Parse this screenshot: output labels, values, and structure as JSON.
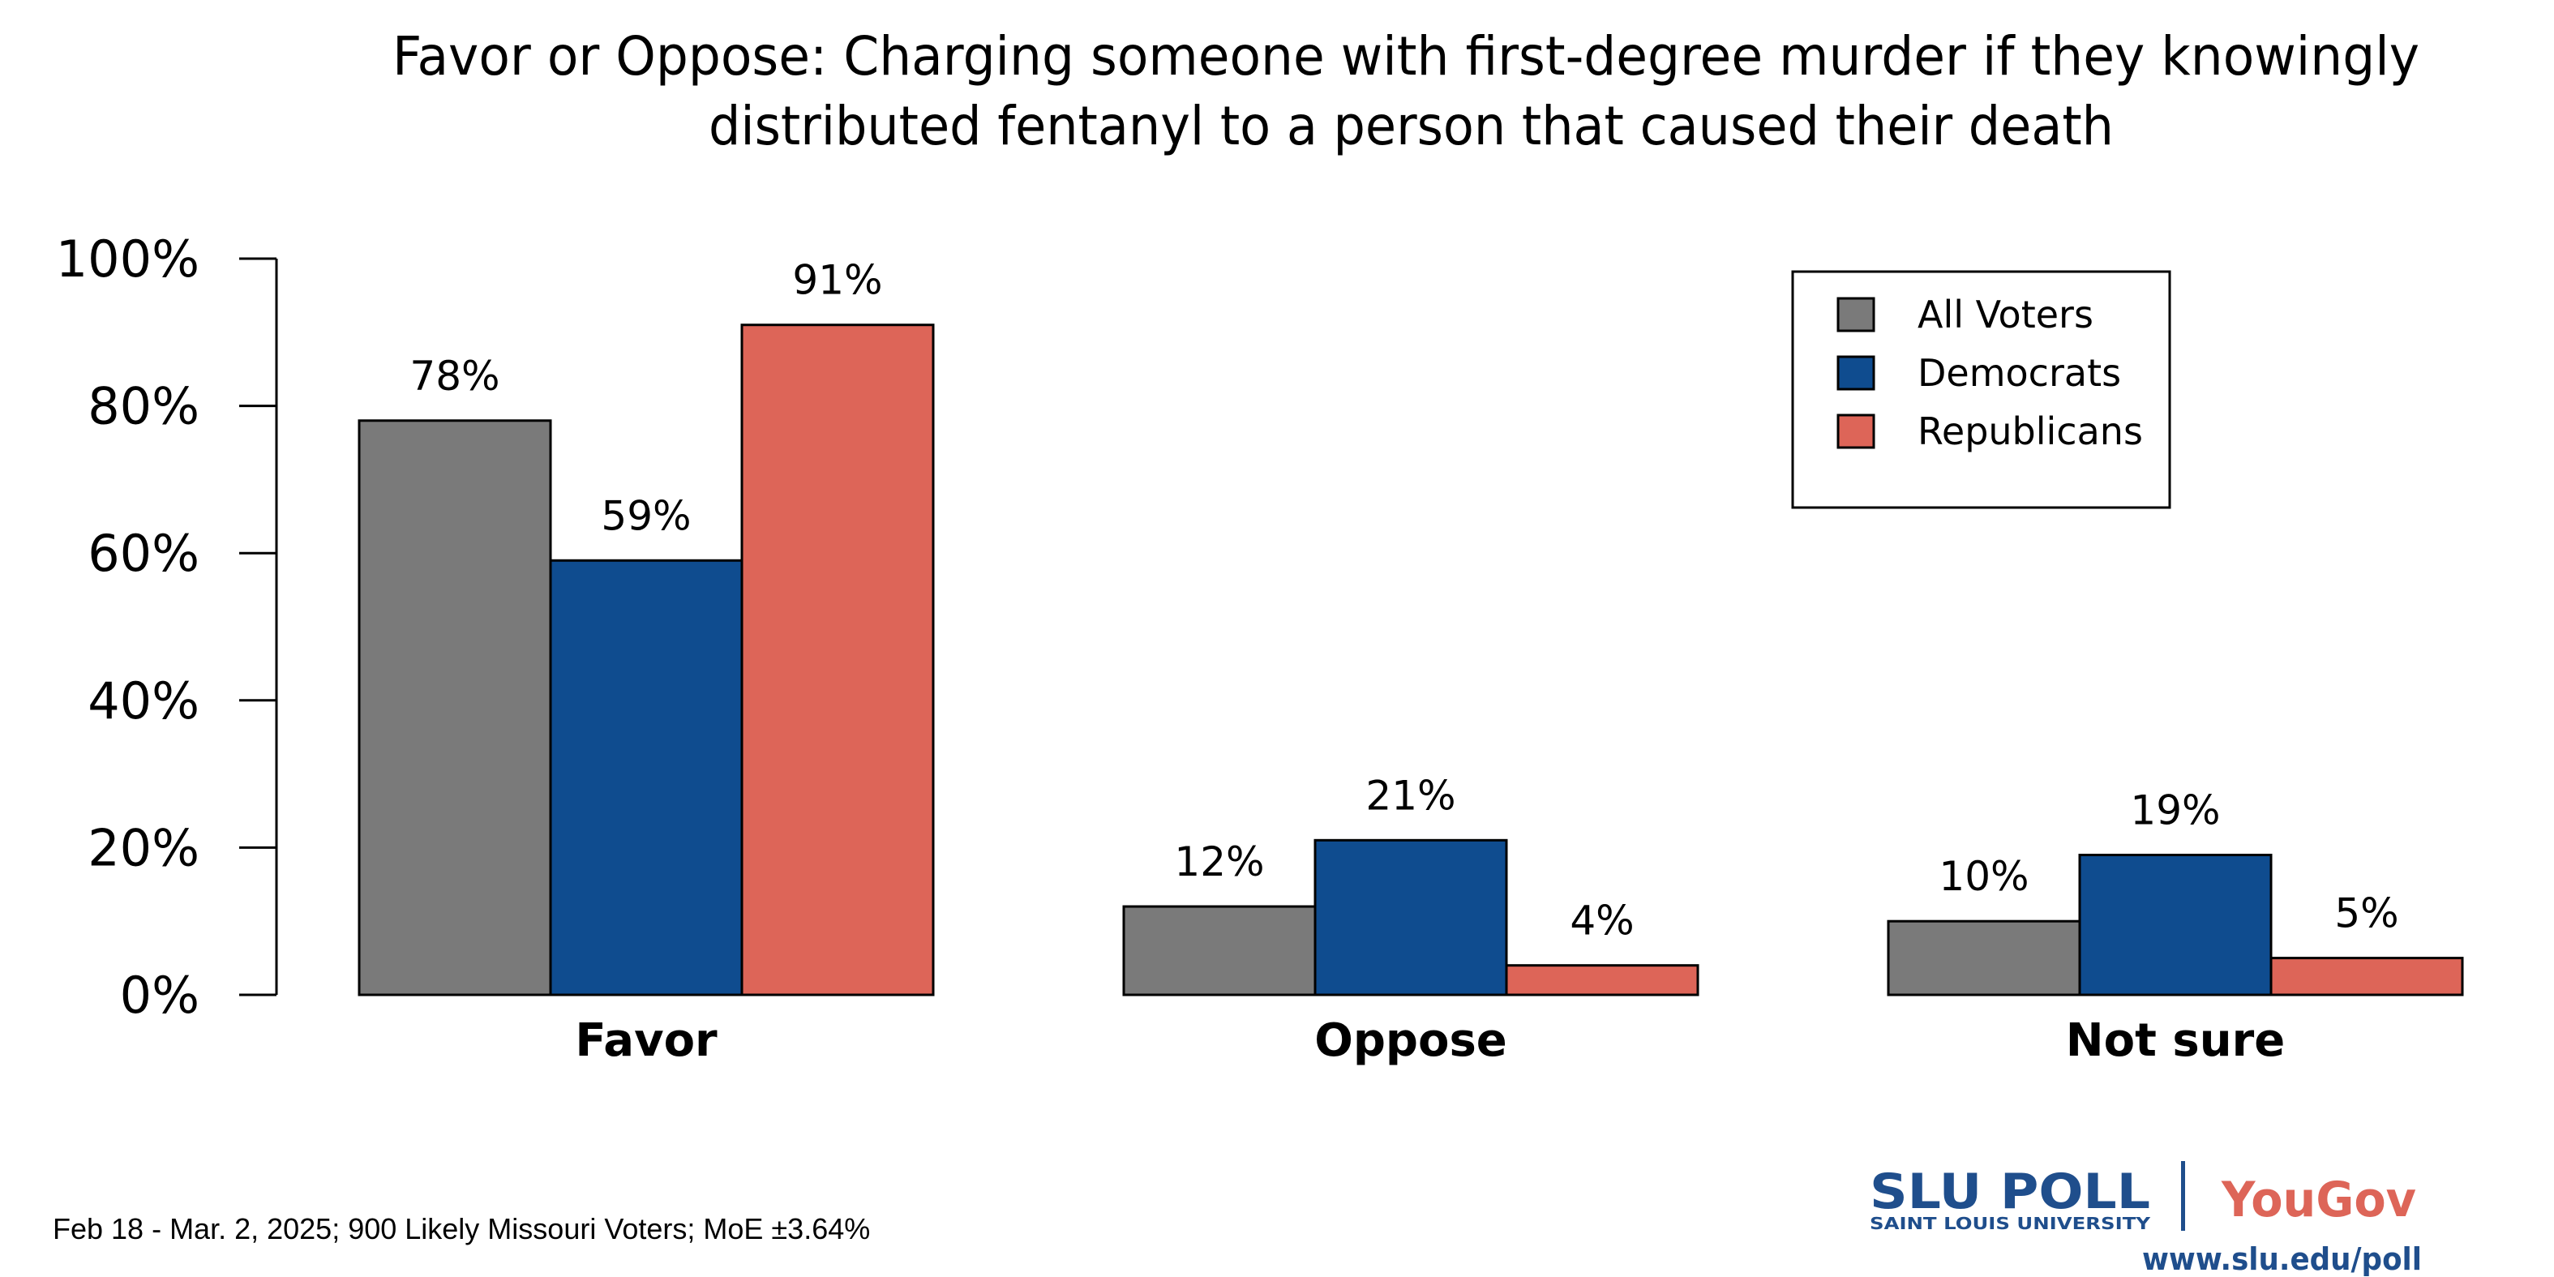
{
  "chart_data": {
    "type": "bar",
    "title_lines": [
      "Favor or Oppose: Charging someone with first-degree murder if they knowingly",
      "distributed fentanyl to a person that caused their death"
    ],
    "categories": [
      "Favor",
      "Oppose",
      "Not sure"
    ],
    "series": [
      {
        "name": "All Voters",
        "values": [
          78,
          12,
          10
        ],
        "labels": [
          "78%",
          "12%",
          "10%"
        ],
        "color": "#7a7a7a"
      },
      {
        "name": "Democrats",
        "values": [
          59,
          21,
          19
        ],
        "labels": [
          "59%",
          "21%",
          "19%"
        ],
        "color": "#0f4c8f"
      },
      {
        "name": "Republicans",
        "values": [
          91,
          4,
          5
        ],
        "labels": [
          "91%",
          "4%",
          "5%"
        ],
        "color": "#dd6558"
      }
    ],
    "y_ticks": [
      "0%",
      "20%",
      "40%",
      "60%",
      "80%",
      "100%"
    ],
    "ylim": [
      0,
      100
    ],
    "xlabel": "",
    "ylabel": "",
    "grid": false,
    "legend_position": "top-right"
  },
  "footer": {
    "note": "Feb 18 - Mar. 2, 2025; 900 Likely Missouri Voters; MoE ±3.64%",
    "logo_slu": "SLU POLL",
    "logo_slu_sub": "SAINT LOUIS UNIVERSITY",
    "logo_yougov": "YouGov",
    "url": "www.slu.edu/poll"
  },
  "colors": {
    "slu_blue": "#1f4e8c",
    "yougov_red": "#dd6558"
  }
}
